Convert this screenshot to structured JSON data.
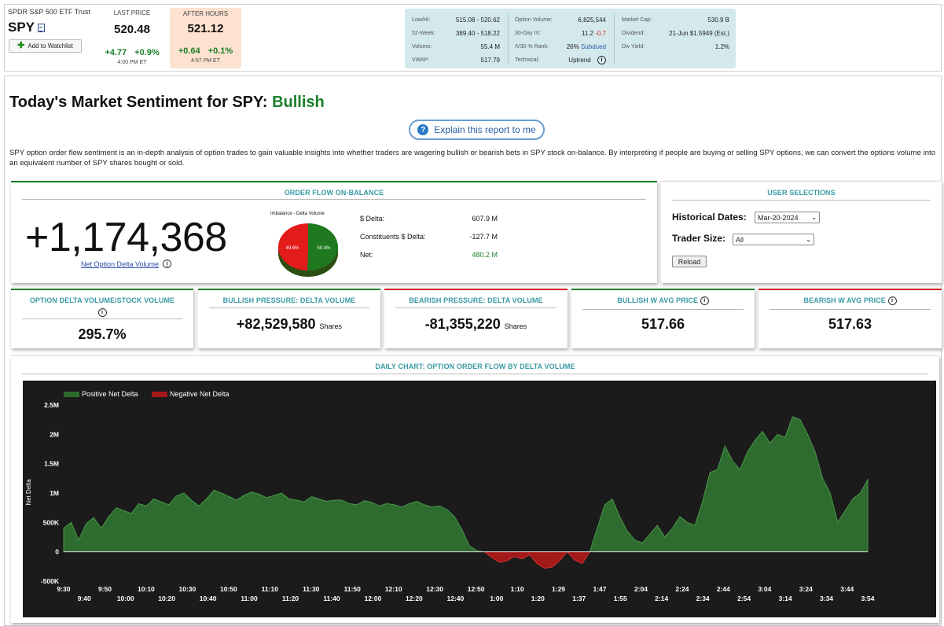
{
  "quote": {
    "name": "SPDR S&P 500 ETF Trust",
    "symbol": "SPY",
    "watchlist_label": "Add to Watchlist",
    "last_price_label": "LAST PRICE",
    "last_price": "520.48",
    "change": "+4.77",
    "change_pct": "+0.9%",
    "last_time": "4:00 PM ET",
    "after_hours_label": "AFTER HOURS",
    "after_price": "521.12",
    "after_change": "+0.64",
    "after_change_pct": "+0.1%",
    "after_time": "4:57 PM ET"
  },
  "stats": {
    "col1": [
      {
        "k": "Low/Hi:",
        "v": "515.08 - 520.62"
      },
      {
        "k": "52-Week:",
        "v": "389.40 - 518.22"
      },
      {
        "k": "Volume:",
        "v": "55.4 M"
      },
      {
        "k": "VWAP:",
        "v": "517.79"
      }
    ],
    "col2": [
      {
        "k": "Option Volume:",
        "v": "6,825,544"
      },
      {
        "k": "30-Day IV:",
        "v": "11.2",
        "v2": "-0.7"
      },
      {
        "k": "IV30 % Rank:",
        "v": "26%",
        "v2": "Subdued"
      },
      {
        "k": "Technical:",
        "v": "Uptrend"
      }
    ],
    "col3": [
      {
        "k": "Market Cap:",
        "v": "530.9 B"
      },
      {
        "k": "Dividend:",
        "v": "21-Jun $1.5949 (Est.)"
      },
      {
        "k": "Div Yield:",
        "v": "1.2%"
      }
    ]
  },
  "headline": {
    "prefix": "Today's Market Sentiment for SPY:",
    "sentiment": "Bullish"
  },
  "explain_label": "Explain this report to me",
  "description": "SPY option order flow sentiment is an in-depth analysis of option trades to gain valuable insights into whether traders are wagering bullish or bearish bets in SPY stock on-balance. By interpreting if people are buying or selling SPY options, we can convert the options volume into an equivalent number of SPY shares bought or sold.",
  "order_flow": {
    "title": "ORDER FLOW ON-BALANCE",
    "net_volume": "+1,174,368",
    "net_volume_label": "Net Option Delta Volume",
    "pie_title": "Imbalance - Delta Volume",
    "pie_red_label": "49.6%",
    "pie_green_label": "50.4%",
    "pie_red_fraction": 0.496,
    "rows": [
      {
        "k": "$ Delta:",
        "v": "607.9 M"
      },
      {
        "k": "Constituents $ Delta:",
        "v": "-127.7 M"
      },
      {
        "k": "Net:",
        "v": "480.2 M"
      }
    ]
  },
  "user_selections": {
    "title": "USER SELECTIONS",
    "dates_label": "Historical Dates:",
    "dates_value": "Mar-20-2024",
    "size_label": "Trader Size:",
    "size_value": "All",
    "reload_label": "Reload"
  },
  "metrics": [
    {
      "title": "OPTION DELTA VOLUME/STOCK VOLUME",
      "value": "295.7%",
      "unit": ""
    },
    {
      "title": "BULLISH PRESSURE: DELTA VOLUME",
      "value": "+82,529,580",
      "unit": "Shares"
    },
    {
      "title": "BEARISH PRESSURE: DELTA VOLUME",
      "value": "-81,355,220",
      "unit": "Shares"
    },
    {
      "title": "BULLISH W AVG PRICE",
      "value": "517.66",
      "unit": ""
    },
    {
      "title": "BEARISH W AVG PRICE",
      "value": "517.63",
      "unit": ""
    }
  ],
  "colors": {
    "positive": "#2e6b2e",
    "negative": "#a31818",
    "accent": "#3a9aa4"
  },
  "chart_data": {
    "type": "area",
    "title": "DAILY CHART: OPTION ORDER FLOW BY DELTA VOLUME",
    "ylabel": "Net Delta",
    "ylim": [
      -500000,
      2500000
    ],
    "y_ticks": [
      "2.5M",
      "2M",
      "1.5M",
      "1M",
      "500K",
      "0",
      "-500K"
    ],
    "y_tick_values": [
      2500000,
      2000000,
      1500000,
      1000000,
      500000,
      0,
      -500000
    ],
    "legend": [
      "Positive Net Delta",
      "Negative Net Delta"
    ],
    "x_ticks_top": [
      "9:30",
      "9:50",
      "10:10",
      "10:30",
      "10:50",
      "11:10",
      "11:30",
      "11:50",
      "12:10",
      "12:30",
      "12:50",
      "1:10",
      "1:29",
      "1:47",
      "2:04",
      "2:24",
      "2:44",
      "3:04",
      "3:24",
      "3:44"
    ],
    "x_ticks_bottom": [
      "9:40",
      "10:00",
      "10:20",
      "10:40",
      "11:00",
      "11:20",
      "11:40",
      "12:00",
      "12:20",
      "12:40",
      "1:00",
      "1:20",
      "1:37",
      "1:55",
      "2:14",
      "2:34",
      "2:54",
      "3:14",
      "3:34",
      "3:54"
    ],
    "values": [
      400000,
      500000,
      200000,
      480000,
      580000,
      400000,
      600000,
      750000,
      700000,
      650000,
      820000,
      780000,
      900000,
      850000,
      800000,
      950000,
      1000000,
      880000,
      780000,
      900000,
      1050000,
      1000000,
      940000,
      880000,
      960000,
      1020000,
      980000,
      920000,
      960000,
      1000000,
      900000,
      880000,
      850000,
      940000,
      900000,
      860000,
      880000,
      880000,
      820000,
      800000,
      870000,
      840000,
      780000,
      820000,
      800000,
      760000,
      820000,
      860000,
      800000,
      760000,
      780000,
      720000,
      600000,
      380000,
      100000,
      20000,
      0,
      -100000,
      -180000,
      -150000,
      -80000,
      -120000,
      -50000,
      -200000,
      -280000,
      -260000,
      -150000,
      0,
      -140000,
      -200000,
      0,
      400000,
      800000,
      900000,
      600000,
      350000,
      200000,
      150000,
      300000,
      450000,
      250000,
      400000,
      600000,
      500000,
      450000,
      850000,
      1350000,
      1400000,
      1800000,
      1550000,
      1400000,
      1700000,
      1900000,
      2050000,
      1850000,
      2000000,
      1950000,
      2300000,
      2250000,
      2000000,
      1700000,
      1250000,
      1000000,
      500000,
      700000,
      900000,
      1000000,
      1230000
    ]
  }
}
